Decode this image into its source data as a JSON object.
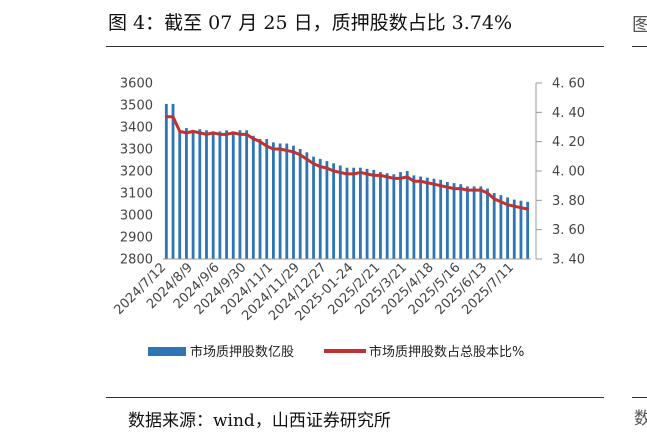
{
  "figure": {
    "title": "图 4：截至 07 月 25 日，质押股数占比 3.74%",
    "source": "数据来源：wind，山西证券研究所",
    "edge_glyph_top": "图",
    "edge_glyph_bottom": "数"
  },
  "chart_data": {
    "type": "bar+line",
    "colors": {
      "bars": "#2E75B6",
      "line": "#C0312F",
      "axis": "#999999"
    },
    "left_axis": {
      "ylim": [
        2800,
        3600
      ],
      "ticks": [
        "2800",
        "2900",
        "3000",
        "3100",
        "3200",
        "3300",
        "3400",
        "3500",
        "3600"
      ]
    },
    "right_axis": {
      "ylim": [
        3.4,
        4.6
      ],
      "ticks": [
        "3. 40",
        "3. 60",
        "3. 80",
        "4. 00",
        "4. 20",
        "4. 40",
        "4. 60"
      ]
    },
    "x_tick_labels": [
      "2024/7/12",
      "2024/8/9",
      "2024/9/6",
      "2024/9/30",
      "2024/11/1",
      "2024/11/29",
      "2024/12/27",
      "2025-01-24",
      "2025/2/21",
      "2025/3/21",
      "2025/4/18",
      "2025/5/16",
      "2025/6/13",
      "2025/7/11"
    ],
    "x_tick_index": [
      0,
      4,
      8,
      12,
      16,
      20,
      24,
      28,
      32,
      36,
      40,
      44,
      48,
      52
    ],
    "series": [
      {
        "name": "市场质押股数亿股",
        "axis": "left",
        "kind": "bar",
        "values": [
          3505,
          3505,
          3380,
          3395,
          3385,
          3390,
          3385,
          3380,
          3380,
          3385,
          3380,
          3385,
          3385,
          3360,
          3345,
          3345,
          3330,
          3325,
          3325,
          3315,
          3300,
          3285,
          3265,
          3255,
          3245,
          3235,
          3225,
          3215,
          3215,
          3215,
          3210,
          3205,
          3195,
          3190,
          3185,
          3195,
          3200,
          3180,
          3175,
          3170,
          3165,
          3160,
          3150,
          3145,
          3140,
          3130,
          3130,
          3130,
          3120,
          3100,
          3090,
          3080,
          3070,
          3065,
          3060
        ]
      },
      {
        "name": "市场质押股数占总股本比%",
        "axis": "right",
        "kind": "line",
        "values": [
          4.37,
          4.37,
          4.27,
          4.26,
          4.27,
          4.26,
          4.25,
          4.26,
          4.25,
          4.25,
          4.26,
          4.25,
          4.25,
          4.22,
          4.2,
          4.17,
          4.15,
          4.15,
          4.14,
          4.13,
          4.11,
          4.08,
          4.05,
          4.03,
          4.02,
          4.0,
          3.99,
          3.98,
          3.98,
          3.99,
          3.98,
          3.97,
          3.97,
          3.96,
          3.95,
          3.95,
          3.96,
          3.93,
          3.93,
          3.92,
          3.91,
          3.9,
          3.89,
          3.88,
          3.88,
          3.87,
          3.87,
          3.87,
          3.85,
          3.81,
          3.79,
          3.77,
          3.76,
          3.75,
          3.74
        ]
      }
    ]
  }
}
